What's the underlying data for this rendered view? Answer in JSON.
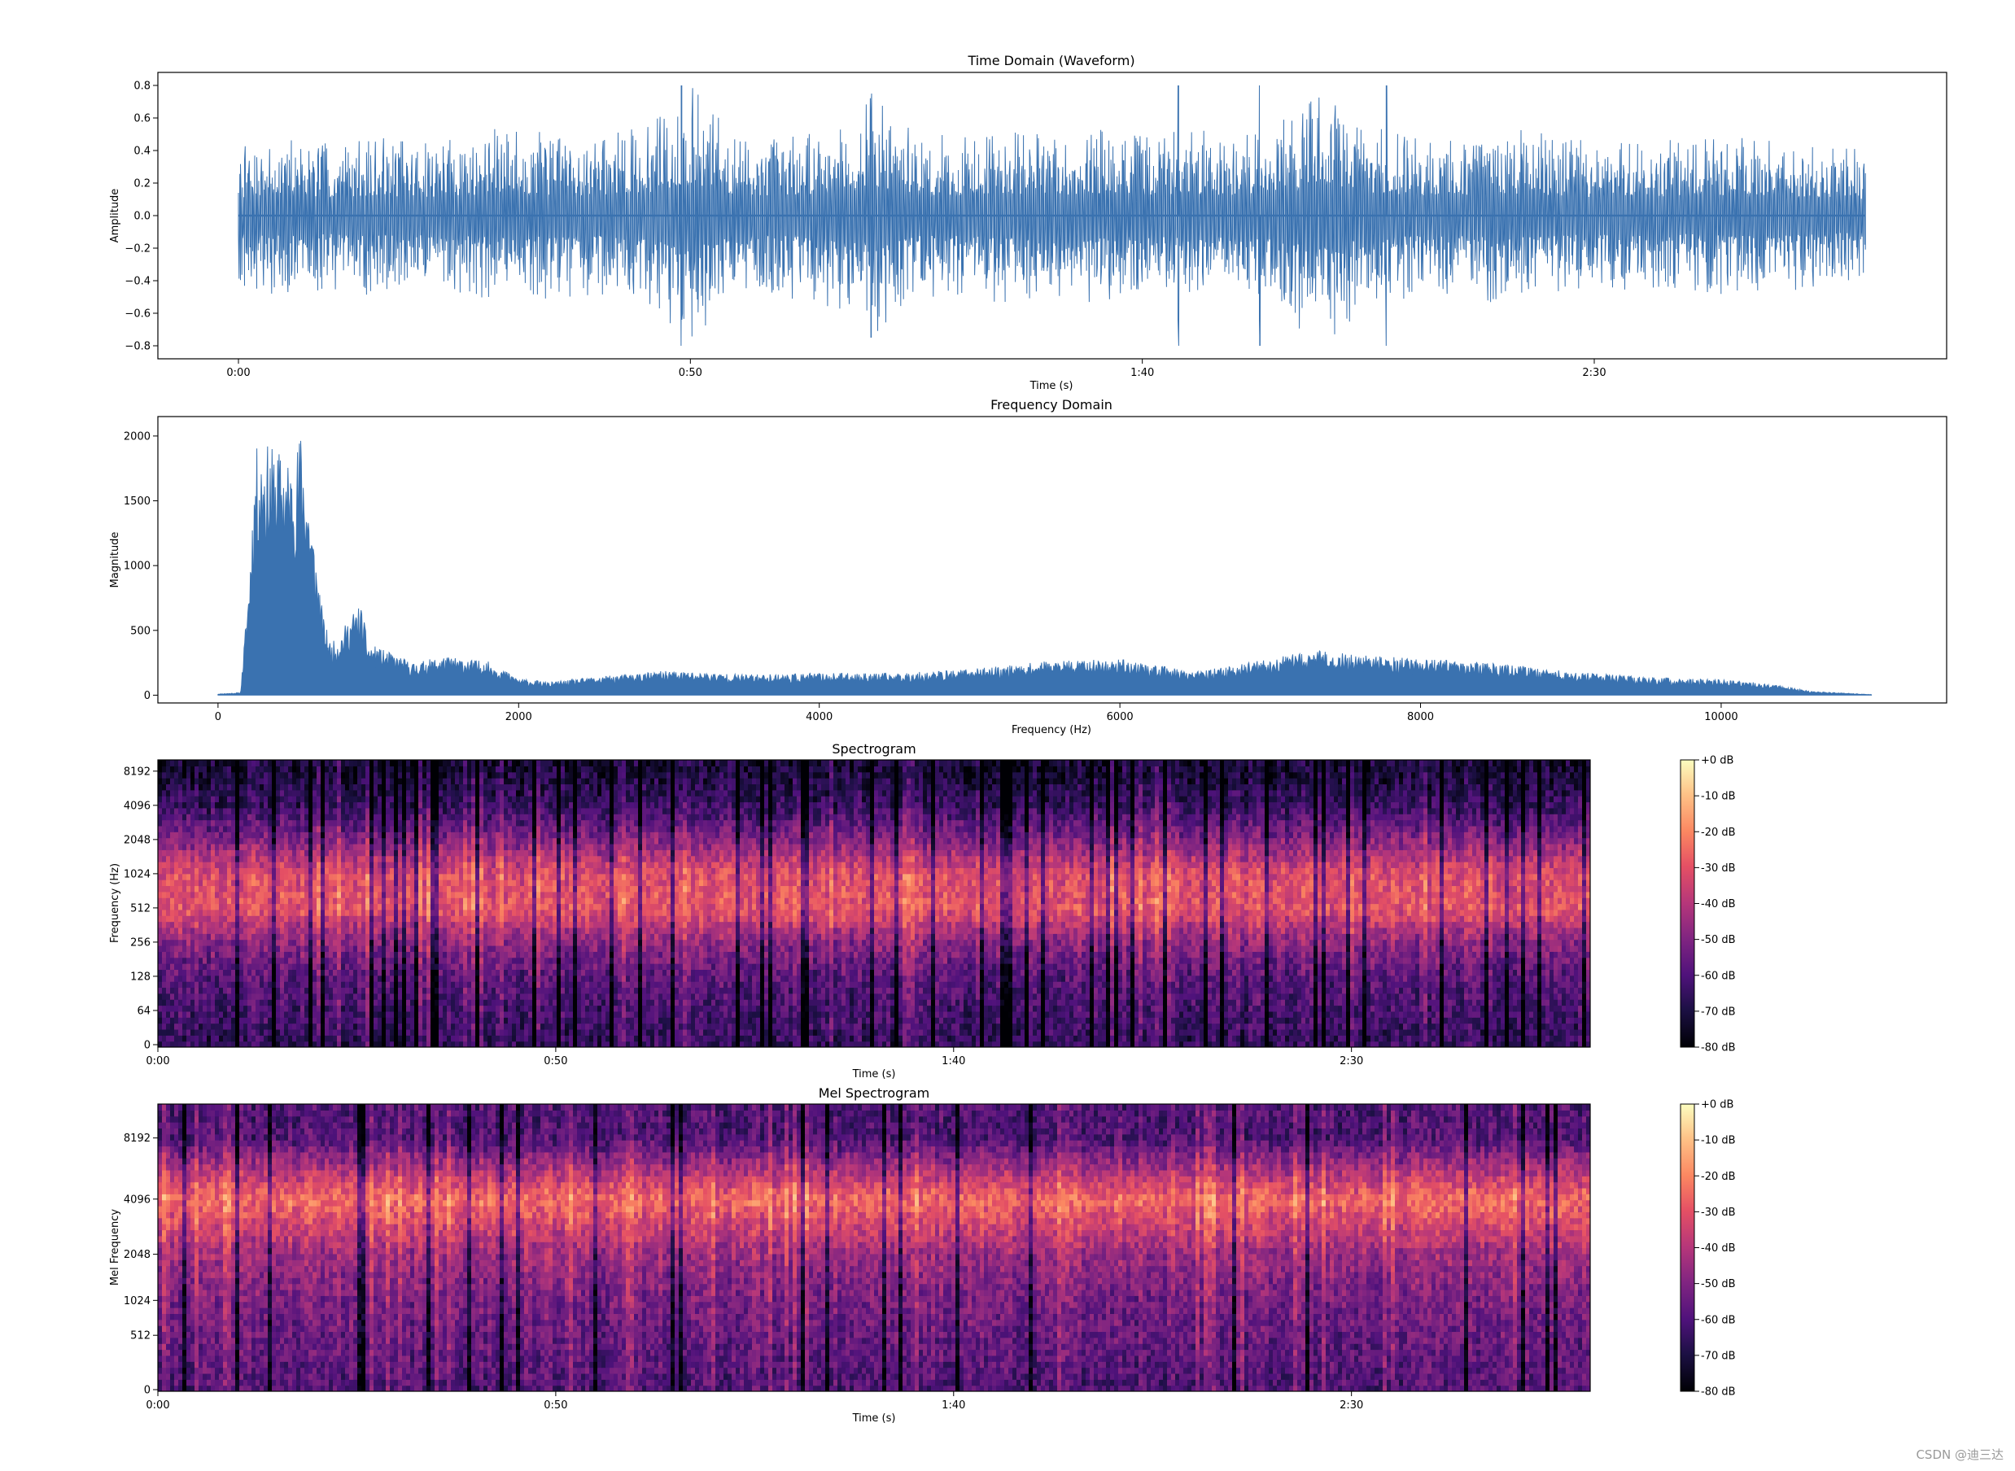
{
  "charts": {
    "waveform": {
      "title": "Time Domain (Waveform)",
      "xlabel": "Time (s)",
      "ylabel": "Amplitude",
      "xticks": [
        "0:00",
        "0:50",
        "1:40",
        "2:30"
      ],
      "yticks": [
        "0.8",
        "0.6",
        "0.4",
        "0.2",
        "0.0",
        "−0.2",
        "−0.4",
        "−0.6",
        "−0.8"
      ]
    },
    "frequency": {
      "title": "Frequency Domain",
      "xlabel": "Frequency (Hz)",
      "ylabel": "Magnitude",
      "xticks": [
        "0",
        "2000",
        "4000",
        "6000",
        "8000",
        "10000"
      ],
      "yticks": [
        "2000",
        "1500",
        "1000",
        "500",
        "0"
      ]
    },
    "spectrogram": {
      "title": "Spectrogram",
      "xlabel": "Time (s)",
      "ylabel": "Frequency (Hz)",
      "xticks": [
        "0:00",
        "0:50",
        "1:40",
        "2:30"
      ],
      "yticks": [
        "8192",
        "4096",
        "2048",
        "1024",
        "512",
        "256",
        "128",
        "64",
        "0"
      ],
      "colorbar_ticks": [
        "+0 dB",
        "-10 dB",
        "-20 dB",
        "-30 dB",
        "-40 dB",
        "-50 dB",
        "-60 dB",
        "-70 dB",
        "-80 dB"
      ]
    },
    "mel": {
      "title": "Mel Spectrogram",
      "xlabel": "Time (s)",
      "ylabel": "Mel Frequency",
      "xticks": [
        "0:00",
        "0:50",
        "1:40",
        "2:30"
      ],
      "yticks": [
        "8192",
        "4096",
        "2048",
        "1024",
        "512",
        "0"
      ],
      "colorbar_ticks": [
        "+0 dB",
        "-10 dB",
        "-20 dB",
        "-30 dB",
        "-40 dB",
        "-50 dB",
        "-60 dB",
        "-70 dB",
        "-80 dB"
      ]
    }
  },
  "watermark": "CSDN @迪三达",
  "colors": {
    "line": "#3a72b0",
    "axis": "#000000",
    "magma_low": "#000004",
    "magma_mid": "#b5367a",
    "magma_high": "#fcfdbf"
  },
  "chart_data": [
    {
      "type": "line",
      "title": "Time Domain (Waveform)",
      "xlabel": "Time (s)",
      "ylabel": "Amplitude",
      "xlim_seconds": [
        0,
        180
      ],
      "ylim": [
        -0.88,
        0.88
      ],
      "x_tick_labels": [
        "0:00",
        "0:50",
        "1:40",
        "2:30"
      ],
      "x_tick_values_seconds": [
        0,
        50,
        100,
        150
      ],
      "y_ticks": [
        -0.8,
        -0.6,
        -0.4,
        -0.2,
        0.0,
        0.2,
        0.4,
        0.6,
        0.8
      ],
      "duration_seconds": 180,
      "envelope_seconds": [
        0,
        5,
        10,
        15,
        20,
        25,
        30,
        35,
        40,
        45,
        50,
        55,
        60,
        65,
        70,
        75,
        80,
        85,
        90,
        95,
        100,
        105,
        110,
        115,
        120,
        125,
        130,
        135,
        140,
        145,
        150,
        155,
        160,
        165,
        170,
        175,
        180
      ],
      "envelope_amplitude": [
        0.43,
        0.5,
        0.45,
        0.5,
        0.45,
        0.5,
        0.55,
        0.5,
        0.5,
        0.55,
        0.8,
        0.5,
        0.5,
        0.55,
        0.75,
        0.5,
        0.5,
        0.55,
        0.5,
        0.55,
        0.5,
        0.55,
        0.5,
        0.6,
        0.8,
        0.55,
        0.5,
        0.5,
        0.55,
        0.5,
        0.45,
        0.5,
        0.45,
        0.5,
        0.5,
        0.45,
        0.4
      ],
      "peaks": [
        [
          49,
          0.8
        ],
        [
          70,
          -0.75
        ],
        [
          104,
          0.8
        ],
        [
          113,
          -0.8
        ],
        [
          127,
          0.8
        ]
      ]
    },
    {
      "type": "area",
      "title": "Frequency Domain",
      "xlabel": "Frequency (Hz)",
      "ylabel": "Magnitude",
      "xlim": [
        -400,
        11500
      ],
      "ylim": [
        -60,
        2150
      ],
      "x_ticks": [
        0,
        2000,
        4000,
        6000,
        8000,
        10000
      ],
      "y_ticks": [
        0,
        500,
        1000,
        1500,
        2000
      ],
      "x": [
        0,
        150,
        200,
        250,
        300,
        400,
        500,
        550,
        600,
        700,
        750,
        800,
        900,
        950,
        1000,
        1100,
        1200,
        1300,
        1500,
        1800,
        2000,
        2200,
        2500,
        3000,
        3500,
        4000,
        4500,
        5000,
        5500,
        6000,
        6500,
        7000,
        7300,
        7500,
        8000,
        8500,
        9000,
        9500,
        10000,
        10300,
        10600,
        11000
      ],
      "envelope": [
        10,
        20,
        800,
        1900,
        1950,
        1900,
        1800,
        2050,
        1600,
        600,
        400,
        450,
        650,
        700,
        400,
        350,
        300,
        250,
        300,
        260,
        130,
        100,
        140,
        190,
        160,
        170,
        170,
        200,
        260,
        280,
        180,
        280,
        350,
        320,
        280,
        250,
        180,
        140,
        120,
        90,
        30,
        5
      ]
    },
    {
      "type": "heatmap",
      "title": "Spectrogram",
      "xlabel": "Time (s)",
      "ylabel": "Frequency (Hz)",
      "colormap": "magma",
      "x_tick_labels": [
        "0:00",
        "0:50",
        "1:40",
        "2:30"
      ],
      "x_tick_values_seconds": [
        0,
        50,
        100,
        150
      ],
      "xlim_seconds": [
        0,
        180
      ],
      "y_scale": "log",
      "y_ticks": [
        0,
        64,
        128,
        256,
        512,
        1024,
        2048,
        4096,
        8192
      ],
      "colorbar_db_ticks": [
        0,
        -10,
        -20,
        -30,
        -40,
        -50,
        -60,
        -70,
        -80
      ],
      "colorbar_range_db": [
        -80,
        0
      ],
      "energy_profile_bands_hz": [
        0,
        64,
        128,
        256,
        512,
        1024,
        2048,
        4096,
        8192
      ],
      "typical_level_db": [
        -72,
        -65,
        -50,
        -32,
        -30,
        -48,
        -58,
        -62,
        -66
      ]
    },
    {
      "type": "heatmap",
      "title": "Mel Spectrogram",
      "xlabel": "Time (s)",
      "ylabel": "Mel Frequency",
      "colormap": "magma",
      "x_tick_labels": [
        "0:00",
        "0:50",
        "1:40",
        "2:30"
      ],
      "x_tick_values_seconds": [
        0,
        50,
        100,
        150
      ],
      "xlim_seconds": [
        0,
        180
      ],
      "y_scale": "mel",
      "y_ticks": [
        0,
        512,
        1024,
        2048,
        4096,
        8192
      ],
      "colorbar_db_ticks": [
        0,
        -10,
        -20,
        -30,
        -40,
        -50,
        -60,
        -70,
        -80
      ],
      "colorbar_range_db": [
        -80,
        0
      ],
      "energy_profile_bands_hz": [
        0,
        512,
        1024,
        2048,
        4096,
        8192
      ],
      "typical_level_db": [
        -60,
        -25,
        -45,
        -52,
        -55,
        -60
      ]
    }
  ]
}
